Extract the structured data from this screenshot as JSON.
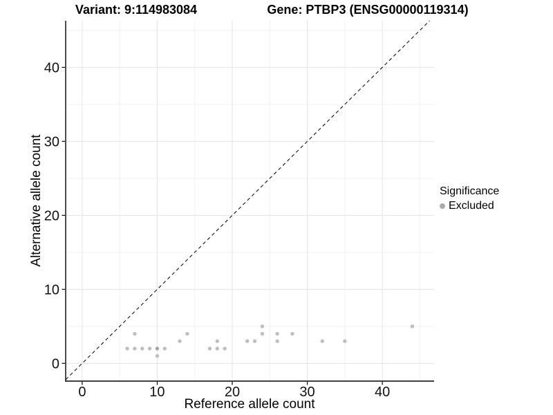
{
  "chart_data": {
    "type": "scatter",
    "title_left": "Variant: 9:114983084",
    "title_right": "Gene: PTBP3 (ENSG00000119314)",
    "xlabel": "Reference allele count",
    "ylabel": "Alternative allele count",
    "xlim": [
      -2.2,
      46.9
    ],
    "ylim": [
      -2.4,
      46.3
    ],
    "xticks": [
      0,
      10,
      20,
      30,
      40
    ],
    "yticks": [
      0,
      10,
      20,
      30,
      40
    ],
    "minor_xticks": [
      5,
      15,
      25,
      35,
      45
    ],
    "minor_yticks": [
      5,
      15,
      25,
      35,
      45
    ],
    "grid": true,
    "background": "#ffffff",
    "major_grid_color": "#e3e3e3",
    "minor_grid_color": "#f1f1f1",
    "axis_color": "#000000",
    "identity_line": {
      "style": "dashed",
      "color": "#111111",
      "equation": "y = x"
    },
    "series": [
      {
        "name": "Excluded",
        "color": "#bebebe",
        "overlap_color": "#a6a6a6",
        "points": [
          [
            6,
            2
          ],
          [
            7,
            2
          ],
          [
            7,
            4
          ],
          [
            8,
            2
          ],
          [
            9,
            2
          ],
          [
            10,
            1
          ],
          [
            10,
            2
          ],
          [
            10,
            2
          ],
          [
            11,
            2
          ],
          [
            13,
            3
          ],
          [
            14,
            4
          ],
          [
            17,
            2
          ],
          [
            18,
            2
          ],
          [
            18,
            3
          ],
          [
            19,
            2
          ],
          [
            22,
            3
          ],
          [
            23,
            3
          ],
          [
            24,
            4
          ],
          [
            24,
            5
          ],
          [
            26,
            3
          ],
          [
            26,
            4
          ],
          [
            28,
            4
          ],
          [
            32,
            3
          ],
          [
            35,
            3
          ],
          [
            44,
            5
          ]
        ]
      }
    ],
    "legend": {
      "title": "Significance",
      "position": "right",
      "items": [
        {
          "label": "Excluded",
          "color": "#aaaaaa"
        }
      ]
    }
  }
}
